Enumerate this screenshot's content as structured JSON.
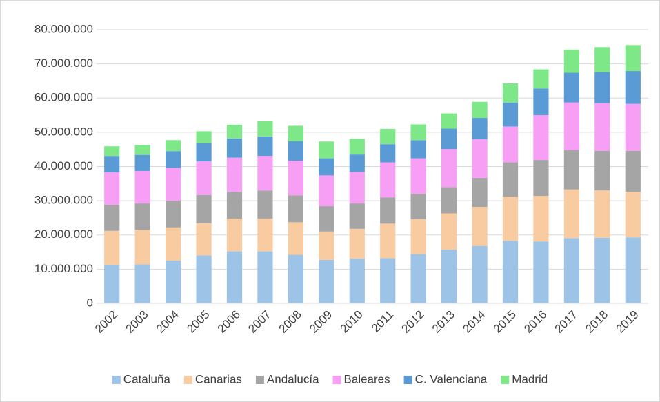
{
  "chart_data": {
    "type": "stacked_bar",
    "categories": [
      "2002",
      "2003",
      "2004",
      "2005",
      "2006",
      "2007",
      "2008",
      "2009",
      "2010",
      "2011",
      "2012",
      "2013",
      "2014",
      "2015",
      "2016",
      "2017",
      "2018",
      "2019"
    ],
    "series": [
      {
        "name": "Cataluña",
        "color": "#9dc3e6",
        "values": [
          11300000,
          11400000,
          12500000,
          14000000,
          15200000,
          15200000,
          14200000,
          12700000,
          13100000,
          13200000,
          14400000,
          15700000,
          16800000,
          18300000,
          18100000,
          19100000,
          19200000,
          19300000
        ]
      },
      {
        "name": "Canarias",
        "color": "#f8cba0",
        "values": [
          9900000,
          10100000,
          9700000,
          9400000,
          9600000,
          9600000,
          9500000,
          8300000,
          8700000,
          10100000,
          10200000,
          10600000,
          11400000,
          12900000,
          13300000,
          14200000,
          13800000,
          13300000
        ]
      },
      {
        "name": "Andalucía",
        "color": "#a5a5a5",
        "values": [
          7600000,
          7700000,
          7800000,
          8300000,
          7800000,
          8200000,
          7900000,
          7400000,
          7400000,
          7700000,
          7400000,
          7700000,
          8500000,
          10000000,
          10500000,
          11500000,
          11600000,
          12000000
        ]
      },
      {
        "name": "Baleares",
        "color": "#f79ff4",
        "values": [
          9500000,
          9500000,
          9600000,
          9800000,
          10000000,
          10100000,
          10100000,
          9000000,
          9200000,
          10200000,
          10400000,
          11100000,
          11300000,
          10500000,
          13100000,
          13900000,
          13900000,
          13700000
        ]
      },
      {
        "name": "C. Valenciana",
        "color": "#5b9bd5",
        "values": [
          4800000,
          4700000,
          4900000,
          5300000,
          5600000,
          5700000,
          5700000,
          5000000,
          5100000,
          5300000,
          5300000,
          6000000,
          6200000,
          7000000,
          7800000,
          8700000,
          9100000,
          9600000
        ]
      },
      {
        "name": "Madrid",
        "color": "#7ee787",
        "values": [
          2800000,
          2900000,
          3200000,
          3500000,
          4000000,
          4400000,
          4500000,
          4900000,
          4600000,
          4500000,
          4600000,
          4400000,
          4700000,
          5600000,
          5600000,
          6800000,
          7300000,
          7600000
        ]
      }
    ],
    "ylim": [
      0,
      80000000
    ],
    "yticks": [
      0,
      {
        "value": 10000000,
        "label": "10.000.000"
      },
      {
        "value": 20000000,
        "label": "20.000.000"
      },
      {
        "value": 30000000,
        "label": "30.000.000"
      },
      {
        "value": 40000000,
        "label": "40.000.000"
      },
      {
        "value": 50000000,
        "label": "50.000.000"
      },
      {
        "value": 60000000,
        "label": "60.000.000"
      },
      {
        "value": 70000000,
        "label": "70.000.000"
      },
      {
        "value": 80000000,
        "label": "80.000.000"
      }
    ],
    "grid": true,
    "legend": "bottom"
  }
}
